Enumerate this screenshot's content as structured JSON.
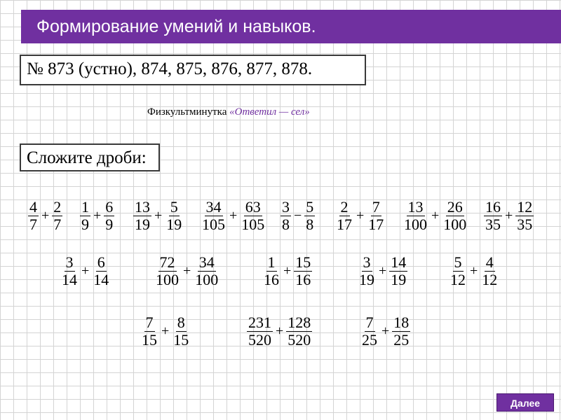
{
  "header": {
    "title": "Формирование умений и навыков."
  },
  "task": {
    "text": "№ 873 (устно), 874, 875, 876, 877, 878."
  },
  "note": {
    "label": "Физкультминутка",
    "emphasis": "«Ответил — сел»"
  },
  "instruction": {
    "text": "Сложите дроби:"
  },
  "fractions": {
    "rows": [
      [
        {
          "a": {
            "n": 4,
            "d": 7
          },
          "op": "+",
          "b": {
            "n": 2,
            "d": 7
          }
        },
        {
          "a": {
            "n": 1,
            "d": 9
          },
          "op": "+",
          "b": {
            "n": 6,
            "d": 9
          }
        },
        {
          "a": {
            "n": 13,
            "d": 19
          },
          "op": "+",
          "b": {
            "n": 5,
            "d": 19
          }
        },
        {
          "a": {
            "n": 34,
            "d": 105
          },
          "op": "+",
          "b": {
            "n": 63,
            "d": 105
          }
        },
        {
          "a": {
            "n": 3,
            "d": 8
          },
          "op": "−",
          "b": {
            "n": 5,
            "d": 8
          }
        },
        {
          "a": {
            "n": 2,
            "d": 17
          },
          "op": "+",
          "b": {
            "n": 7,
            "d": 17
          }
        },
        {
          "a": {
            "n": 13,
            "d": 100
          },
          "op": "+",
          "b": {
            "n": 26,
            "d": 100
          }
        },
        {
          "a": {
            "n": 16,
            "d": 35
          },
          "op": "+",
          "b": {
            "n": 12,
            "d": 35
          }
        }
      ],
      [
        {
          "a": {
            "n": 3,
            "d": 14
          },
          "op": "+",
          "b": {
            "n": 6,
            "d": 14
          }
        },
        {
          "a": {
            "n": 72,
            "d": 100
          },
          "op": "+",
          "b": {
            "n": 34,
            "d": 100
          }
        },
        {
          "a": {
            "n": 1,
            "d": 16
          },
          "op": "+",
          "b": {
            "n": 15,
            "d": 16
          }
        },
        {
          "a": {
            "n": 3,
            "d": 19
          },
          "op": "+",
          "b": {
            "n": 14,
            "d": 19
          }
        },
        {
          "a": {
            "n": 5,
            "d": 12
          },
          "op": "+",
          "b": {
            "n": 4,
            "d": 12
          }
        }
      ],
      [
        {
          "a": {
            "n": 7,
            "d": 15
          },
          "op": "+",
          "b": {
            "n": 8,
            "d": 15
          }
        },
        {
          "a": {
            "n": 231,
            "d": 520
          },
          "op": "+",
          "b": {
            "n": 128,
            "d": 520
          }
        },
        {
          "a": {
            "n": 7,
            "d": 25
          },
          "op": "+",
          "b": {
            "n": 18,
            "d": 25
          }
        }
      ]
    ]
  },
  "button": {
    "label": "Далее"
  }
}
